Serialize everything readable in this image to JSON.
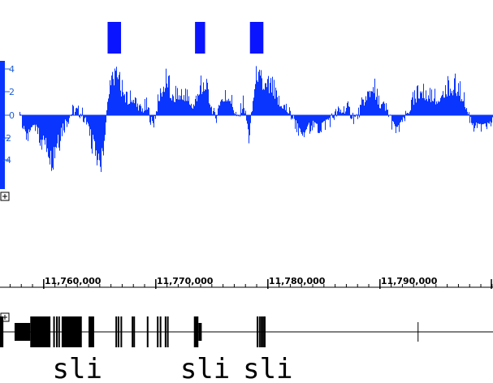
{
  "colors": {
    "signal": "#0a35ff",
    "feature": "#0a14ff",
    "y_axis": "#1f5fd6",
    "gene": "#000000"
  },
  "icons": [
    "expand-icon",
    "expand-icon"
  ],
  "chart_data": {
    "type": "bar",
    "title": "",
    "ylabel": "",
    "ylim": [
      -5.5,
      5.0
    ],
    "y_ticks": [
      "4",
      "2",
      "0",
      "-2",
      "-4"
    ],
    "x_ticks": [
      "11,760,000",
      "11,770,000",
      "11,780,000",
      "11,790,000"
    ],
    "x_range": [
      11756100,
      11800000
    ],
    "features": [
      {
        "start": 11765700,
        "end": 11766900
      },
      {
        "start": 11773500,
        "end": 11774400
      },
      {
        "start": 11778400,
        "end": 11779600
      }
    ],
    "signal_knots": [
      [
        11756100,
        -1.5
      ],
      [
        11756800,
        3.0
      ],
      [
        11757600,
        2.2
      ],
      [
        11758400,
        -2.5
      ],
      [
        11759200,
        -1.2
      ],
      [
        11759900,
        -3.0
      ],
      [
        11760900,
        -4.5
      ],
      [
        11761700,
        -1.2
      ],
      [
        11762600,
        0.5
      ],
      [
        11763400,
        0.2
      ],
      [
        11764100,
        -1.8
      ],
      [
        11764700,
        -4.8
      ],
      [
        11765300,
        -3.8
      ],
      [
        11765800,
        2.8
      ],
      [
        11766300,
        4.6
      ],
      [
        11766800,
        3.2
      ],
      [
        11767400,
        1.5
      ],
      [
        11768000,
        2.0
      ],
      [
        11768600,
        0.5
      ],
      [
        11769200,
        1.0
      ],
      [
        11769700,
        -1.2
      ],
      [
        11770400,
        2.5
      ],
      [
        11770900,
        4.0
      ],
      [
        11771500,
        1.5
      ],
      [
        11772200,
        2.6
      ],
      [
        11772800,
        2.0
      ],
      [
        11773300,
        1.0
      ],
      [
        11773800,
        2.8
      ],
      [
        11774300,
        3.2
      ],
      [
        11774800,
        1.5
      ],
      [
        11775300,
        -0.5
      ],
      [
        11775800,
        2.2
      ],
      [
        11776600,
        2.0
      ],
      [
        11777300,
        -0.6
      ],
      [
        11777800,
        1.5
      ],
      [
        11778300,
        -2.8
      ],
      [
        11778800,
        3.8
      ],
      [
        11779400,
        3.5
      ],
      [
        11780300,
        3.0
      ],
      [
        11780900,
        1.5
      ],
      [
        11781600,
        0.8
      ],
      [
        11782300,
        -0.5
      ],
      [
        11783100,
        -2.5
      ],
      [
        11783800,
        -0.8
      ],
      [
        11784500,
        -1.5
      ],
      [
        11785400,
        -0.6
      ],
      [
        11786200,
        0.3
      ],
      [
        11787000,
        0.8
      ],
      [
        11787800,
        -0.5
      ],
      [
        11788600,
        1.6
      ],
      [
        11789300,
        3.4
      ],
      [
        11789900,
        1.2
      ],
      [
        11790600,
        0.6
      ],
      [
        11791400,
        -1.8
      ],
      [
        11792100,
        -0.6
      ],
      [
        11792800,
        1.2
      ],
      [
        11793600,
        2.8
      ],
      [
        11794300,
        2.0
      ],
      [
        11795000,
        1.6
      ],
      [
        11795800,
        2.6
      ],
      [
        11796700,
        3.0
      ],
      [
        11797400,
        1.8
      ],
      [
        11798200,
        -1.0
      ],
      [
        11799000,
        -1.4
      ],
      [
        11800000,
        -1.0
      ]
    ],
    "gene": {
      "line_from": 11756100,
      "line_to": 11800000,
      "blocks": [
        {
          "start": 11756100,
          "end": 11756400,
          "tall": true
        },
        {
          "start": 11757400,
          "end": 11758800,
          "tall": false
        },
        {
          "start": 11758800,
          "end": 11760600,
          "tall": true
        },
        {
          "start": 11761600,
          "end": 11763400,
          "tall": true
        },
        {
          "start": 11764000,
          "end": 11764500,
          "tall": true
        },
        {
          "start": 11773400,
          "end": 11773800,
          "tall": true
        },
        {
          "start": 11773800,
          "end": 11774100,
          "tall": false
        }
      ],
      "exons": [
        11760850,
        11761100,
        11761300,
        11764100,
        11764300,
        11766400,
        11766600,
        11766850,
        11767850,
        11768000,
        11769200,
        11770100,
        11770350,
        11770800,
        11771000,
        11773600,
        11779000,
        11779200,
        11779350,
        11779500,
        11779650
      ],
      "tick_at": 11793400,
      "labels": [
        {
          "text": "sli",
          "at": 11763000
        },
        {
          "text": "sli",
          "at": 11774400
        },
        {
          "text": "sli",
          "at": 11780000
        }
      ]
    }
  }
}
